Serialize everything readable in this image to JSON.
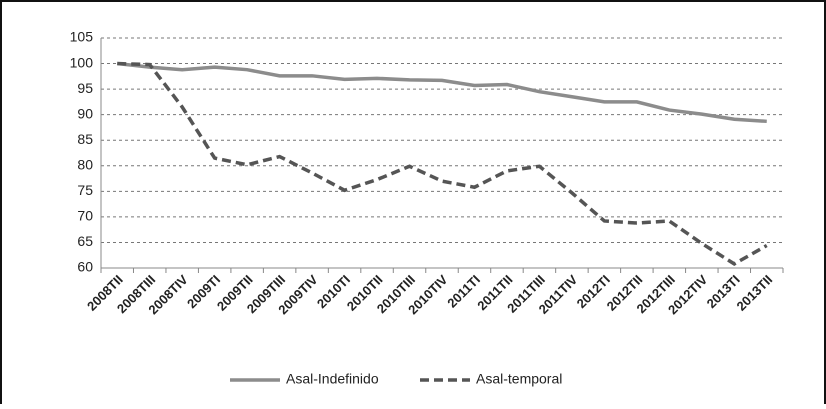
{
  "chart_data": {
    "type": "line",
    "categories": [
      "2008TII",
      "2008TIII",
      "2008TIV",
      "2009TI",
      "2009TII",
      "2009TIII",
      "2009TIV",
      "2010TI",
      "2010TII",
      "2010TIII",
      "2010TIV",
      "2011TI",
      "2011TII",
      "2011TIII",
      "2011TIV",
      "2012TI",
      "2012TII",
      "2012TIII",
      "2012TIV",
      "2013TI",
      "2013TII"
    ],
    "series": [
      {
        "name": "Asal-Indefinido",
        "color": "#8c8c8c",
        "dash": false,
        "values": [
          100,
          99.3,
          98.8,
          99.3,
          98.8,
          97.6,
          97.6,
          96.9,
          97.1,
          96.8,
          96.7,
          95.7,
          95.9,
          94.5,
          93.5,
          92.5,
          92.5,
          90.9,
          90.1,
          89.1,
          88.7
        ]
      },
      {
        "name": "Asal-temporal",
        "color": "#555555",
        "dash": true,
        "values": [
          100,
          99.8,
          91.5,
          81.5,
          80.2,
          81.8,
          78.6,
          75.2,
          77.3,
          79.9,
          77.0,
          75.8,
          79.0,
          79.9,
          74.7,
          69.2,
          68.8,
          69.2,
          64.8,
          60.8,
          64.4
        ]
      }
    ],
    "ylim": [
      60,
      105
    ],
    "yticks": [
      60,
      65,
      70,
      75,
      80,
      85,
      90,
      95,
      100,
      105
    ],
    "grid": true,
    "legend": "bottom"
  }
}
